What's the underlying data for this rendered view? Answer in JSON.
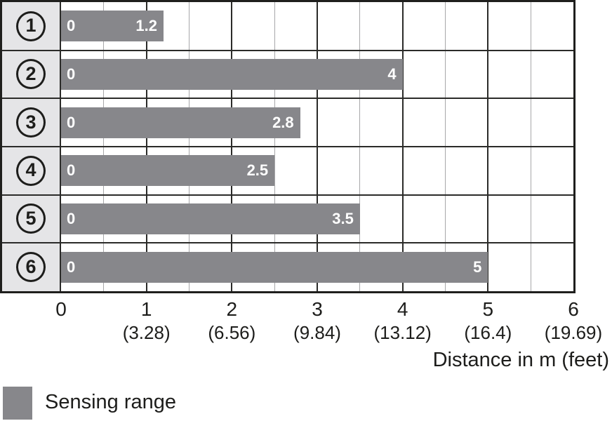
{
  "chart_data": {
    "type": "bar",
    "orientation": "horizontal",
    "categories": [
      "1",
      "2",
      "3",
      "4",
      "5",
      "6"
    ],
    "series": [
      {
        "name": "Sensing range",
        "values": [
          1.2,
          4,
          2.8,
          2.5,
          3.5,
          5
        ]
      }
    ],
    "bar_origin_label": "0",
    "bar_value_labels": [
      "1.2",
      "4",
      "2.8",
      "2.5",
      "3.5",
      "5"
    ],
    "xlabel": "Distance in m (feet)",
    "xlim": [
      0,
      6
    ],
    "grid": {
      "major_step": 1,
      "minor_step": 0.5,
      "horizontal_lines": false
    },
    "x_ticks": [
      {
        "m": "0",
        "feet": ""
      },
      {
        "m": "1",
        "feet": "(3.28)"
      },
      {
        "m": "2",
        "feet": "(6.56)"
      },
      {
        "m": "3",
        "feet": "(9.84)"
      },
      {
        "m": "4",
        "feet": "(13.12)"
      },
      {
        "m": "5",
        "feet": "(16.4)"
      },
      {
        "m": "6",
        "feet": "(19.69)"
      }
    ],
    "legend": [
      {
        "label": "Sensing range",
        "swatch_color": "#87878b"
      }
    ]
  },
  "colors": {
    "bar": "#87878b",
    "label_cell_bg": "#e5e5e7",
    "grid_major": "#2b2b29",
    "grid_minor": "#a7a7a9",
    "frame_border": "#1f1f1d",
    "text": "#1d1d1b",
    "bar_text": "#ffffff"
  }
}
